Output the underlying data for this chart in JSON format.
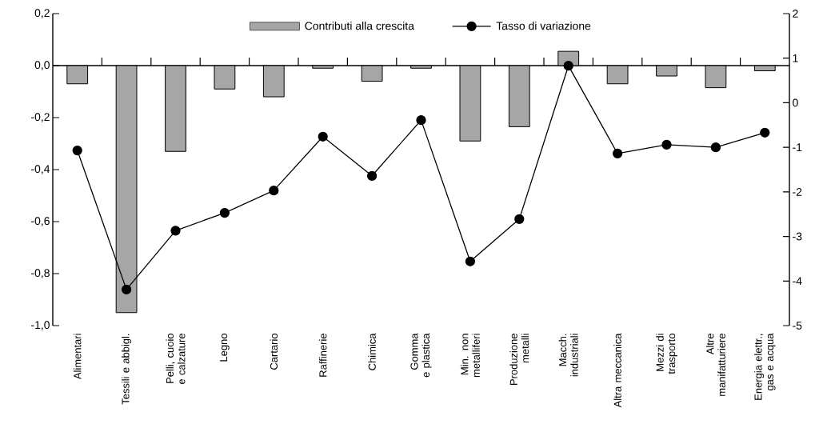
{
  "chart_data": {
    "type": "bar",
    "categories": [
      "Alimentari",
      "Tessili e abbigl.",
      "Pelli, cuoio e calzature",
      "Legno",
      "Cartario",
      "Raffinerie",
      "Chimica",
      "Gomma e plastica",
      "Min. non metalliferi",
      "Produzione metalli",
      "Macch. industriali",
      "Altra meccanica",
      "Mezzi di trasporto",
      "Altre manifatturiere",
      "Energia elettr., gas e acqua"
    ],
    "series": [
      {
        "name": "Contributi alla crescita",
        "color": "#a6a6a6",
        "values": [
          -0.07,
          -0.95,
          -0.33,
          -0.09,
          -0.12,
          -0.01,
          -0.06,
          -0.01,
          -0.29,
          -0.235,
          0.055,
          -0.07,
          -0.04,
          -0.085,
          -0.02
        ]
      },
      {
        "name": "Tasso di variazione",
        "type": "line",
        "axis": "y2",
        "color": "#000000",
        "marker": "circle",
        "values": [
          -1.07,
          -4.19,
          -2.87,
          -2.47,
          -1.97,
          -0.76,
          -1.64,
          -0.39,
          -3.56,
          -2.61,
          0.83,
          -1.14,
          -0.94,
          -1.0,
          -0.67
        ]
      }
    ],
    "ylim": [
      -1.0,
      0.2
    ],
    "yticks": [
      {
        "value": -1.0,
        "label": "-1,0"
      },
      {
        "value": -0.8,
        "label": "-0,8"
      },
      {
        "value": -0.6,
        "label": "-0,6"
      },
      {
        "value": -0.4,
        "label": "-0,4"
      },
      {
        "value": -0.2,
        "label": "-0,2"
      },
      {
        "value": 0.0,
        "label": "0,0"
      },
      {
        "value": 0.2,
        "label": "0,2"
      }
    ],
    "y2lim": [
      -5,
      2
    ],
    "y2ticks": [
      {
        "value": -5,
        "label": "-5"
      },
      {
        "value": -4,
        "label": "-4"
      },
      {
        "value": -3,
        "label": "-3"
      },
      {
        "value": -2,
        "label": "-2"
      },
      {
        "value": -1,
        "label": "-1"
      },
      {
        "value": 0,
        "label": "0"
      },
      {
        "value": 1,
        "label": "1"
      },
      {
        "value": 2,
        "label": "2"
      }
    ],
    "legend": "top"
  }
}
